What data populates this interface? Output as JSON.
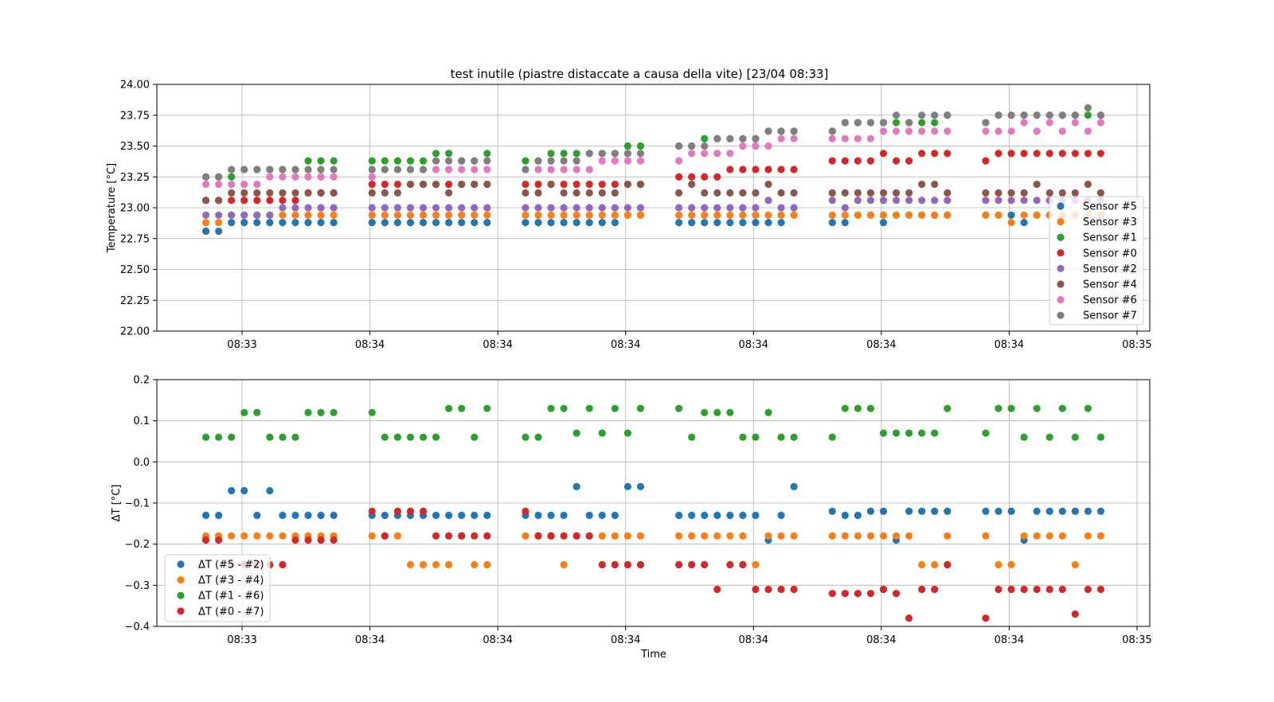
{
  "chart_data": [
    {
      "type": "scatter",
      "title": "test inutile (piastre distaccate a causa della vite) [23/04 08:33]",
      "xlabel": "",
      "ylabel": "Temperature [°C]",
      "x_ticks": [
        "08:33",
        "08:34",
        "08:34",
        "08:34",
        "08:34",
        "08:34",
        "08:34",
        "08:35"
      ],
      "x_tick_seconds": [
        18,
        48,
        78,
        108,
        138,
        168,
        198,
        228
      ],
      "xlim_seconds": [
        -2,
        231
      ],
      "ylim": [
        22.0,
        24.0
      ],
      "y_ticks": [
        22.0,
        22.25,
        22.5,
        22.75,
        23.0,
        23.25,
        23.5,
        23.75,
        24.0
      ],
      "y_tick_labels": [
        "22.00",
        "22.25",
        "22.50",
        "22.75",
        "23.00",
        "23.25",
        "23.50",
        "23.75",
        "24.00"
      ],
      "grid": true,
      "legend_position": "center-right",
      "x_time_seconds_after_08_32_59": [
        9.5,
        12.5,
        15.5,
        18.5,
        21.5,
        24.5,
        27.5,
        30.5,
        33.5,
        36.5,
        39.5,
        48.5,
        51.5,
        54.5,
        57.5,
        60.5,
        63.5,
        66.5,
        69.5,
        72.5,
        75.5,
        84.5,
        87.5,
        90.5,
        93.5,
        96.5,
        99.5,
        102.5,
        105.5,
        108.5,
        111.5,
        120.5,
        123.5,
        126.5,
        129.5,
        132.5,
        135.5,
        138.5,
        141.5,
        144.5,
        147.5,
        156.5,
        159.5,
        162.5,
        165.5,
        168.5,
        171.5,
        174.5,
        177.5,
        180.5,
        183.5,
        192.5,
        195.5,
        198.5,
        201.5,
        204.5,
        207.5,
        210.5,
        213.5,
        216.5,
        219.5
      ],
      "series": [
        {
          "name": "Sensor #5",
          "color": "#1f77b4",
          "values": [
            22.81,
            22.81,
            22.88,
            22.88,
            22.88,
            22.88,
            22.88,
            22.88,
            22.88,
            22.88,
            22.88,
            22.88,
            22.88,
            22.88,
            22.88,
            22.88,
            22.88,
            22.88,
            22.88,
            22.88,
            22.88,
            22.88,
            22.88,
            22.88,
            22.88,
            22.88,
            22.88,
            22.88,
            22.88,
            22.94,
            22.94,
            22.88,
            22.88,
            22.88,
            22.88,
            22.88,
            22.88,
            22.88,
            22.88,
            22.88,
            22.94,
            22.88,
            22.88,
            22.94,
            22.94,
            22.88,
            22.94,
            22.94,
            22.94,
            22.94,
            22.94,
            22.94,
            22.94,
            22.94,
            22.88,
            22.94,
            22.94,
            22.94,
            22.94,
            22.94,
            22.94
          ]
        },
        {
          "name": "Sensor #3",
          "color": "#ff7f0e",
          "values": [
            22.88,
            22.88,
            22.94,
            22.94,
            22.94,
            22.94,
            22.94,
            22.94,
            22.94,
            22.94,
            22.94,
            22.94,
            22.94,
            22.94,
            22.94,
            22.94,
            22.94,
            22.94,
            22.94,
            22.94,
            22.94,
            22.94,
            22.94,
            22.94,
            22.94,
            22.94,
            22.94,
            22.94,
            22.94,
            22.94,
            22.94,
            22.94,
            22.94,
            22.94,
            22.94,
            22.94,
            22.94,
            22.94,
            22.94,
            22.94,
            22.94,
            22.94,
            22.94,
            22.94,
            22.94,
            22.94,
            22.94,
            22.94,
            22.94,
            22.94,
            22.94,
            22.94,
            22.94,
            22.88,
            22.94,
            22.94,
            22.94,
            22.94,
            22.94,
            22.94,
            22.94
          ]
        },
        {
          "name": "Sensor #1",
          "color": "#2ca02c",
          "values": [
            23.25,
            23.25,
            23.25,
            23.31,
            23.31,
            23.31,
            23.31,
            23.31,
            23.38,
            23.38,
            23.38,
            23.38,
            23.38,
            23.38,
            23.38,
            23.38,
            23.44,
            23.44,
            23.38,
            23.38,
            23.44,
            23.38,
            23.38,
            23.44,
            23.44,
            23.44,
            23.44,
            23.44,
            23.44,
            23.5,
            23.5,
            23.5,
            23.5,
            23.56,
            23.56,
            23.56,
            23.56,
            23.56,
            23.62,
            23.62,
            23.62,
            23.62,
            23.69,
            23.69,
            23.69,
            23.69,
            23.69,
            23.69,
            23.69,
            23.69,
            23.75,
            23.69,
            23.75,
            23.75,
            23.75,
            23.75,
            23.75,
            23.75,
            23.75,
            23.75,
            23.75
          ]
        },
        {
          "name": "Sensor #0",
          "color": "#d62728",
          "values": [
            23.06,
            23.06,
            23.06,
            23.06,
            23.06,
            23.06,
            23.06,
            23.06,
            23.12,
            23.12,
            23.12,
            23.19,
            23.19,
            23.19,
            23.19,
            23.19,
            23.19,
            23.19,
            23.19,
            23.19,
            23.19,
            23.19,
            23.19,
            23.19,
            23.19,
            23.19,
            23.19,
            23.19,
            23.19,
            23.19,
            23.19,
            23.25,
            23.25,
            23.25,
            23.25,
            23.31,
            23.31,
            23.31,
            23.31,
            23.31,
            23.31,
            23.38,
            23.38,
            23.38,
            23.38,
            23.44,
            23.38,
            23.38,
            23.44,
            23.44,
            23.44,
            23.38,
            23.44,
            23.44,
            23.44,
            23.44,
            23.44,
            23.44,
            23.44,
            23.44,
            23.44
          ]
        },
        {
          "name": "Sensor #2",
          "color": "#9467bd",
          "values": [
            22.94,
            22.94,
            22.94,
            22.94,
            22.94,
            22.94,
            23.0,
            23.0,
            23.0,
            23.0,
            23.0,
            23.0,
            23.0,
            23.0,
            23.0,
            23.0,
            23.0,
            23.0,
            23.0,
            23.0,
            23.0,
            23.0,
            23.0,
            23.0,
            23.0,
            23.0,
            23.0,
            23.0,
            23.0,
            23.0,
            23.0,
            23.0,
            23.0,
            23.0,
            23.0,
            23.0,
            23.0,
            23.0,
            23.06,
            23.0,
            23.0,
            23.06,
            23.0,
            23.06,
            23.06,
            23.06,
            23.06,
            23.06,
            23.06,
            23.06,
            23.06,
            23.06,
            23.06,
            23.06,
            23.06,
            23.06,
            23.06,
            23.06,
            23.06,
            23.06,
            23.06
          ]
        },
        {
          "name": "Sensor #4",
          "color": "#8c564b",
          "values": [
            23.06,
            23.06,
            23.12,
            23.12,
            23.12,
            23.12,
            23.12,
            23.12,
            23.12,
            23.12,
            23.12,
            23.12,
            23.12,
            23.12,
            23.19,
            23.19,
            23.19,
            23.12,
            23.19,
            23.19,
            23.19,
            23.12,
            23.12,
            23.19,
            23.12,
            23.12,
            23.12,
            23.12,
            23.12,
            23.19,
            23.19,
            23.12,
            23.19,
            23.12,
            23.12,
            23.12,
            23.12,
            23.12,
            23.19,
            23.12,
            23.12,
            23.12,
            23.12,
            23.12,
            23.12,
            23.12,
            23.12,
            23.12,
            23.19,
            23.19,
            23.12,
            23.12,
            23.12,
            23.12,
            23.12,
            23.19,
            23.12,
            23.12,
            23.12,
            23.19,
            23.12
          ]
        },
        {
          "name": "Sensor #6",
          "color": "#e377c2",
          "values": [
            23.19,
            23.19,
            23.19,
            23.19,
            23.19,
            23.25,
            23.25,
            23.25,
            23.25,
            23.25,
            23.25,
            23.25,
            23.31,
            23.31,
            23.31,
            23.31,
            23.31,
            23.31,
            23.31,
            23.31,
            23.31,
            23.31,
            23.31,
            23.31,
            23.31,
            23.31,
            23.31,
            23.38,
            23.38,
            23.38,
            23.38,
            23.38,
            23.44,
            23.44,
            23.44,
            23.44,
            23.5,
            23.5,
            23.5,
            23.56,
            23.56,
            23.56,
            23.56,
            23.56,
            23.56,
            23.62,
            23.62,
            23.62,
            23.62,
            23.62,
            23.62,
            23.62,
            23.62,
            23.62,
            23.69,
            23.62,
            23.69,
            23.62,
            23.69,
            23.62,
            23.69
          ]
        },
        {
          "name": "Sensor #7",
          "color": "#7f7f7f",
          "values": [
            23.25,
            23.25,
            23.31,
            23.31,
            23.31,
            23.31,
            23.31,
            23.31,
            23.31,
            23.31,
            23.31,
            23.31,
            23.31,
            23.31,
            23.31,
            23.31,
            23.38,
            23.38,
            23.38,
            23.38,
            23.38,
            23.31,
            23.38,
            23.38,
            23.38,
            23.38,
            23.44,
            23.44,
            23.44,
            23.44,
            23.44,
            23.5,
            23.5,
            23.5,
            23.56,
            23.56,
            23.56,
            23.56,
            23.62,
            23.62,
            23.62,
            23.62,
            23.69,
            23.69,
            23.69,
            23.69,
            23.75,
            23.69,
            23.75,
            23.75,
            23.75,
            23.69,
            23.75,
            23.75,
            23.75,
            23.75,
            23.75,
            23.75,
            23.75,
            23.81,
            23.75
          ]
        }
      ],
      "legend": [
        "Sensor #5",
        "Sensor #3",
        "Sensor #1",
        "Sensor #0",
        "Sensor #2",
        "Sensor #4",
        "Sensor #6",
        "Sensor #7"
      ]
    },
    {
      "type": "scatter",
      "title": "",
      "xlabel": "Time",
      "ylabel": "ΔT [°C]",
      "x_ticks": [
        "08:33",
        "08:34",
        "08:34",
        "08:34",
        "08:34",
        "08:34",
        "08:34",
        "08:35"
      ],
      "x_tick_seconds": [
        18,
        48,
        78,
        108,
        138,
        168,
        198,
        228
      ],
      "xlim_seconds": [
        -2,
        231
      ],
      "ylim": [
        -0.4,
        0.2
      ],
      "y_ticks": [
        -0.4,
        -0.3,
        -0.2,
        -0.1,
        0.0,
        0.1,
        0.2
      ],
      "y_tick_labels": [
        "−0.4",
        "−0.3",
        "−0.2",
        "−0.1",
        "0.0",
        "0.1",
        "0.2"
      ],
      "grid": true,
      "legend_position": "lower-left",
      "x_time_seconds_after_08_32_59": [
        9.5,
        12.5,
        15.5,
        18.5,
        21.5,
        24.5,
        27.5,
        30.5,
        33.5,
        36.5,
        39.5,
        48.5,
        51.5,
        54.5,
        57.5,
        60.5,
        63.5,
        66.5,
        69.5,
        72.5,
        75.5,
        84.5,
        87.5,
        90.5,
        93.5,
        96.5,
        99.5,
        102.5,
        105.5,
        108.5,
        111.5,
        120.5,
        123.5,
        126.5,
        129.5,
        132.5,
        135.5,
        138.5,
        141.5,
        144.5,
        147.5,
        156.5,
        159.5,
        162.5,
        165.5,
        168.5,
        171.5,
        174.5,
        177.5,
        180.5,
        183.5,
        192.5,
        195.5,
        198.5,
        201.5,
        204.5,
        207.5,
        210.5,
        213.5,
        216.5,
        219.5
      ],
      "series": [
        {
          "name": "ΔT (#5 - #2)",
          "color": "#1f77b4",
          "values": [
            -0.13,
            -0.13,
            -0.07,
            -0.07,
            -0.13,
            -0.07,
            -0.13,
            -0.13,
            -0.13,
            -0.13,
            -0.13,
            -0.13,
            -0.13,
            -0.13,
            -0.13,
            -0.13,
            -0.13,
            -0.13,
            -0.13,
            -0.13,
            -0.13,
            -0.13,
            -0.13,
            -0.13,
            -0.13,
            -0.06,
            -0.13,
            -0.13,
            -0.13,
            -0.06,
            -0.06,
            -0.13,
            -0.13,
            -0.13,
            -0.13,
            -0.13,
            -0.13,
            -0.13,
            -0.19,
            -0.13,
            -0.06,
            -0.12,
            -0.13,
            -0.13,
            -0.12,
            -0.12,
            -0.19,
            -0.12,
            -0.12,
            -0.12,
            -0.12,
            -0.12,
            -0.12,
            -0.12,
            -0.19,
            -0.12,
            -0.12,
            -0.12,
            -0.12,
            -0.12,
            -0.12
          ]
        },
        {
          "name": "ΔT (#3 - #4)",
          "color": "#ff7f0e",
          "values": [
            -0.18,
            -0.18,
            -0.18,
            -0.18,
            -0.18,
            -0.18,
            -0.18,
            -0.18,
            -0.18,
            -0.18,
            -0.18,
            -0.18,
            -0.18,
            -0.18,
            -0.25,
            -0.25,
            -0.25,
            -0.25,
            -0.18,
            -0.25,
            -0.25,
            -0.18,
            -0.18,
            -0.18,
            -0.25,
            -0.18,
            -0.18,
            -0.18,
            -0.18,
            -0.18,
            -0.18,
            -0.18,
            -0.18,
            -0.18,
            -0.18,
            -0.18,
            -0.18,
            -0.25,
            -0.18,
            -0.18,
            -0.18,
            -0.18,
            -0.18,
            -0.18,
            -0.18,
            -0.18,
            -0.18,
            -0.18,
            -0.25,
            -0.25,
            -0.18,
            -0.18,
            -0.25,
            -0.25,
            -0.18,
            -0.18,
            -0.18,
            -0.18,
            -0.25,
            -0.18,
            -0.18
          ]
        },
        {
          "name": "ΔT (#1 - #6)",
          "color": "#2ca02c",
          "values": [
            0.06,
            0.06,
            0.06,
            0.12,
            0.12,
            0.06,
            0.06,
            0.06,
            0.12,
            0.12,
            0.12,
            0.12,
            0.06,
            0.06,
            0.06,
            0.06,
            0.06,
            0.13,
            0.13,
            0.06,
            0.13,
            0.06,
            0.06,
            0.13,
            0.13,
            0.07,
            0.13,
            0.07,
            0.13,
            0.07,
            0.13,
            0.13,
            0.06,
            0.12,
            0.12,
            0.12,
            0.06,
            0.06,
            0.12,
            0.06,
            0.06,
            0.06,
            0.13,
            0.13,
            0.13,
            0.07,
            0.07,
            0.07,
            0.07,
            0.07,
            0.13,
            0.07,
            0.13,
            0.13,
            0.06,
            0.13,
            0.06,
            0.13,
            0.06,
            0.13,
            0.06
          ]
        },
        {
          "name": "ΔT (#0 - #7)",
          "color": "#d62728",
          "values": [
            -0.19,
            -0.19,
            -0.25,
            -0.25,
            -0.25,
            -0.25,
            -0.25,
            -0.19,
            -0.19,
            -0.19,
            -0.19,
            -0.12,
            -0.18,
            -0.12,
            -0.12,
            -0.12,
            -0.18,
            -0.18,
            -0.18,
            -0.18,
            -0.18,
            -0.12,
            -0.18,
            -0.18,
            -0.18,
            -0.18,
            -0.18,
            -0.25,
            -0.25,
            -0.25,
            -0.25,
            -0.25,
            -0.25,
            -0.25,
            -0.31,
            -0.25,
            -0.25,
            -0.31,
            -0.31,
            -0.31,
            -0.31,
            -0.32,
            -0.32,
            -0.32,
            -0.32,
            -0.31,
            -0.32,
            -0.38,
            -0.31,
            -0.31,
            -0.25,
            -0.38,
            -0.31,
            -0.31,
            -0.31,
            -0.31,
            -0.31,
            -0.31,
            -0.37,
            -0.31,
            -0.31
          ]
        }
      ],
      "legend": [
        "ΔT (#5 - #2)",
        "ΔT (#3 - #4)",
        "ΔT (#1 - #6)",
        "ΔT (#0 - #7)"
      ]
    }
  ]
}
